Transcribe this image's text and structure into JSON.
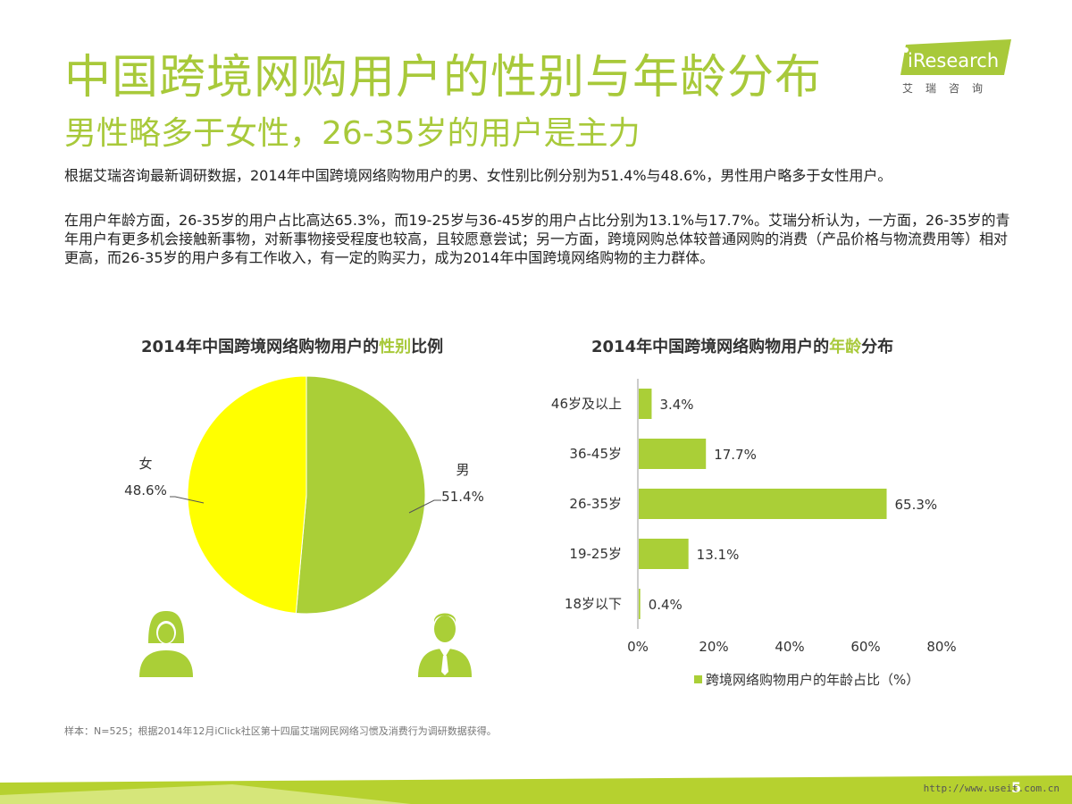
{
  "header": {
    "title": "中国跨境网购用户的性别与年龄分布",
    "subtitle": "男性略多于女性，26-35岁的用户是主力",
    "logo_text": "iResearch",
    "logo_sub": "艾瑞咨询"
  },
  "body": {
    "p1": "根据艾瑞咨询最新调研数据，2014年中国跨境网络购物用户的男、女性别比例分别为51.4%与48.6%，男性用户略多于女性用户。",
    "p2": "在用户年龄方面，26-35岁的用户占比高达65.3%，而19-25岁与36-45岁的用户占比分别为13.1%与17.7%。艾瑞分析认为，一方面，26-35岁的青年用户有更多机会接触新事物，对新事物接受程度也较高，且较愿意尝试；另一方面，跨境网购总体较普通网购的消费（产品价格与物流费用等）相对更高，而26-35岁的用户多有工作收入，有一定的购买力，成为2014年中国跨境网络购物的主力群体。"
  },
  "colors": {
    "accent": "#a8c93a",
    "male": "#aacf37",
    "female": "#ffff00",
    "bar": "#aacf37"
  },
  "chart_data": [
    {
      "type": "pie",
      "title_prefix": "2014年中国跨境网络购物用户的",
      "title_highlight": "性别",
      "title_suffix": "比例",
      "slices": [
        {
          "label": "男",
          "value": 51.4,
          "display": "51.4%"
        },
        {
          "label": "女",
          "value": 48.6,
          "display": "48.6%"
        }
      ]
    },
    {
      "type": "bar",
      "orientation": "horizontal",
      "title_prefix": "2014年中国跨境网络购物用户的",
      "title_highlight": "年龄",
      "title_suffix": "分布",
      "categories": [
        "46岁及以上",
        "36-45岁",
        "26-35岁",
        "19-25岁",
        "18岁以下"
      ],
      "values": [
        3.4,
        17.7,
        65.3,
        13.1,
        0.4
      ],
      "labels": [
        "3.4%",
        "17.7%",
        "65.3%",
        "13.1%",
        "0.4%"
      ],
      "xlim": [
        0,
        80
      ],
      "xticks": [
        "0%",
        "20%",
        "40%",
        "60%",
        "80%"
      ],
      "legend": "跨境网络购物用户的年龄占比（%）"
    }
  ],
  "footer": {
    "note": "样本：N=525；根据2014年12月iClick社区第十四届艾瑞网民网络习惯及消费行为调研数据获得。",
    "watermark": "http://www.useit.com.cn",
    "page": "5"
  }
}
